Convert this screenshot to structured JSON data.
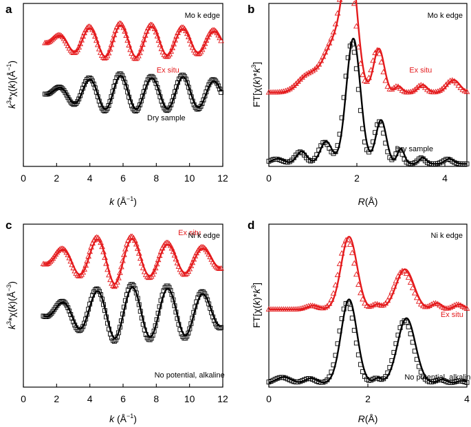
{
  "chart_data": [
    {
      "panel": "a",
      "type": "line",
      "title": "Mo k edge",
      "xlabel": "k (Å⁻¹)",
      "ylabel": "k³*χ(k)(Å⁻¹)",
      "xlim": [
        0,
        12
      ],
      "ylim": [
        -3,
        3
      ],
      "xticks": [
        0,
        2,
        4,
        6,
        8,
        10,
        12
      ],
      "yticks_shown": false,
      "series": [
        {
          "name": "Ex situ",
          "kind": "oscillation",
          "color": "#e41a1c",
          "marker": "triangle",
          "offset": 1.6,
          "xrange": [
            1.3,
            11.9
          ],
          "freq": 3.35,
          "phase": 0.8,
          "amp": [
            0.06,
            0.45,
            0.6,
            0.55,
            0.45,
            0.35
          ],
          "label": "Ex situ",
          "label_pos": [
            8.7,
            0.45
          ]
        },
        {
          "name": "Dry sample",
          "kind": "oscillation",
          "color": "#000000",
          "marker": "square",
          "offset": -0.3,
          "xrange": [
            1.3,
            11.9
          ],
          "freq": 3.35,
          "phase": 0.8,
          "amp": [
            0.04,
            0.45,
            0.65,
            0.55,
            0.6,
            0.4
          ],
          "label": "Dry sample",
          "label_pos": [
            8.6,
            -1.3
          ]
        }
      ]
    },
    {
      "panel": "b",
      "type": "line",
      "title": "Mo k edge",
      "xlabel": "R(Å)",
      "ylabel": "FT[χ(k)*k³]",
      "xlim": [
        0,
        4.5
      ],
      "ylim": [
        0,
        1.3
      ],
      "xticks": [
        0,
        2,
        4
      ],
      "yticks_shown": false,
      "series": [
        {
          "name": "Ex situ",
          "kind": "peaks",
          "color": "#e41a1c",
          "marker": "triangle",
          "offset": 0.55,
          "baseline": 0.04,
          "peaks": [
            [
              0.9,
              0.13,
              0.22
            ],
            [
              1.5,
              0.4,
              0.25
            ],
            [
              1.85,
              0.95,
              0.16
            ],
            [
              2.5,
              0.35,
              0.12
            ],
            [
              2.95,
              0.05,
              0.08
            ],
            [
              3.5,
              0.06,
              0.1
            ],
            [
              4.2,
              0.1,
              0.14
            ]
          ],
          "label": "Ex situ",
          "label_pos": [
            3.45,
            0.75
          ]
        },
        {
          "name": "Dry sample",
          "kind": "peaks",
          "color": "#000000",
          "marker": "square",
          "offset": 0.02,
          "baseline": 0.0,
          "peaks": [
            [
              0.2,
              0.04,
              0.15
            ],
            [
              0.75,
              0.1,
              0.12
            ],
            [
              1.3,
              0.18,
              0.13
            ],
            [
              1.92,
              1.0,
              0.16
            ],
            [
              2.55,
              0.35,
              0.12
            ],
            [
              3.0,
              0.12,
              0.08
            ],
            [
              3.5,
              0.05,
              0.08
            ],
            [
              4.1,
              0.04,
              0.1
            ]
          ],
          "label": "Dry sample",
          "label_pos": [
            3.3,
            0.12
          ]
        }
      ]
    },
    {
      "panel": "c",
      "type": "line",
      "title": "Ni k edge",
      "xlabel": "k (Å⁻¹)",
      "ylabel": "k³*χ(k)(Å⁻³)",
      "xlim": [
        0,
        12
      ],
      "ylim": [
        -3,
        3
      ],
      "xticks": [
        0,
        2,
        4,
        6,
        8,
        10,
        12
      ],
      "yticks_shown": false,
      "series": [
        {
          "name": "Ex situ",
          "kind": "oscillation",
          "color": "#e41a1c",
          "marker": "triangle",
          "offset": 1.7,
          "xrange": [
            1.2,
            11.9
          ],
          "freq": 2.95,
          "phase": 1.05,
          "amp": [
            0.15,
            0.55,
            0.9,
            0.6,
            0.5,
            0.3
          ],
          "label": "Ex situ",
          "label_pos": [
            10.0,
            2.6
          ]
        },
        {
          "name": "No potential, alkaline",
          "kind": "oscillation",
          "color": "#000000",
          "marker": "square",
          "offset": -0.25,
          "xrange": [
            1.2,
            11.9
          ],
          "freq": 2.95,
          "phase": 1.05,
          "amp": [
            0.12,
            0.6,
            0.95,
            0.9,
            0.85,
            0.5
          ],
          "label": "No potential, alkaline",
          "label_pos": [
            10.0,
            -2.65
          ]
        }
      ]
    },
    {
      "panel": "d",
      "type": "line",
      "title": "Ni k edge",
      "xlabel": "R(Å)",
      "ylabel": "FT[χ(k)*k³]",
      "xlim": [
        0,
        4
      ],
      "ylim": [
        0,
        1.3
      ],
      "xticks": [
        0,
        2,
        4
      ],
      "yticks_shown": false,
      "series": [
        {
          "name": "Ex situ",
          "kind": "peaks",
          "color": "#e41a1c",
          "marker": "triangle",
          "offset": 0.62,
          "baseline": 0.0,
          "peaks": [
            [
              0.9,
              0.03,
              0.12
            ],
            [
              1.62,
              0.58,
              0.16
            ],
            [
              2.2,
              0.04,
              0.08
            ],
            [
              2.75,
              0.32,
              0.18
            ],
            [
              3.4,
              0.05,
              0.1
            ],
            [
              3.85,
              0.04,
              0.1
            ]
          ],
          "label": "Ex situ",
          "label_pos": [
            3.7,
            0.56
          ]
        },
        {
          "name": "No potential, alkaline",
          "kind": "peaks",
          "color": "#000000",
          "marker": "square",
          "offset": 0.03,
          "baseline": 0.0,
          "peaks": [
            [
              0.3,
              0.05,
              0.15
            ],
            [
              0.85,
              0.04,
              0.12
            ],
            [
              1.62,
              0.67,
              0.16
            ],
            [
              2.2,
              0.04,
              0.08
            ],
            [
              2.78,
              0.52,
              0.18
            ],
            [
              3.5,
              0.03,
              0.1
            ],
            [
              3.9,
              0.02,
              0.1
            ]
          ],
          "label": "No potential, alkaline",
          "label_pos": [
            3.45,
            0.06
          ]
        }
      ]
    }
  ]
}
